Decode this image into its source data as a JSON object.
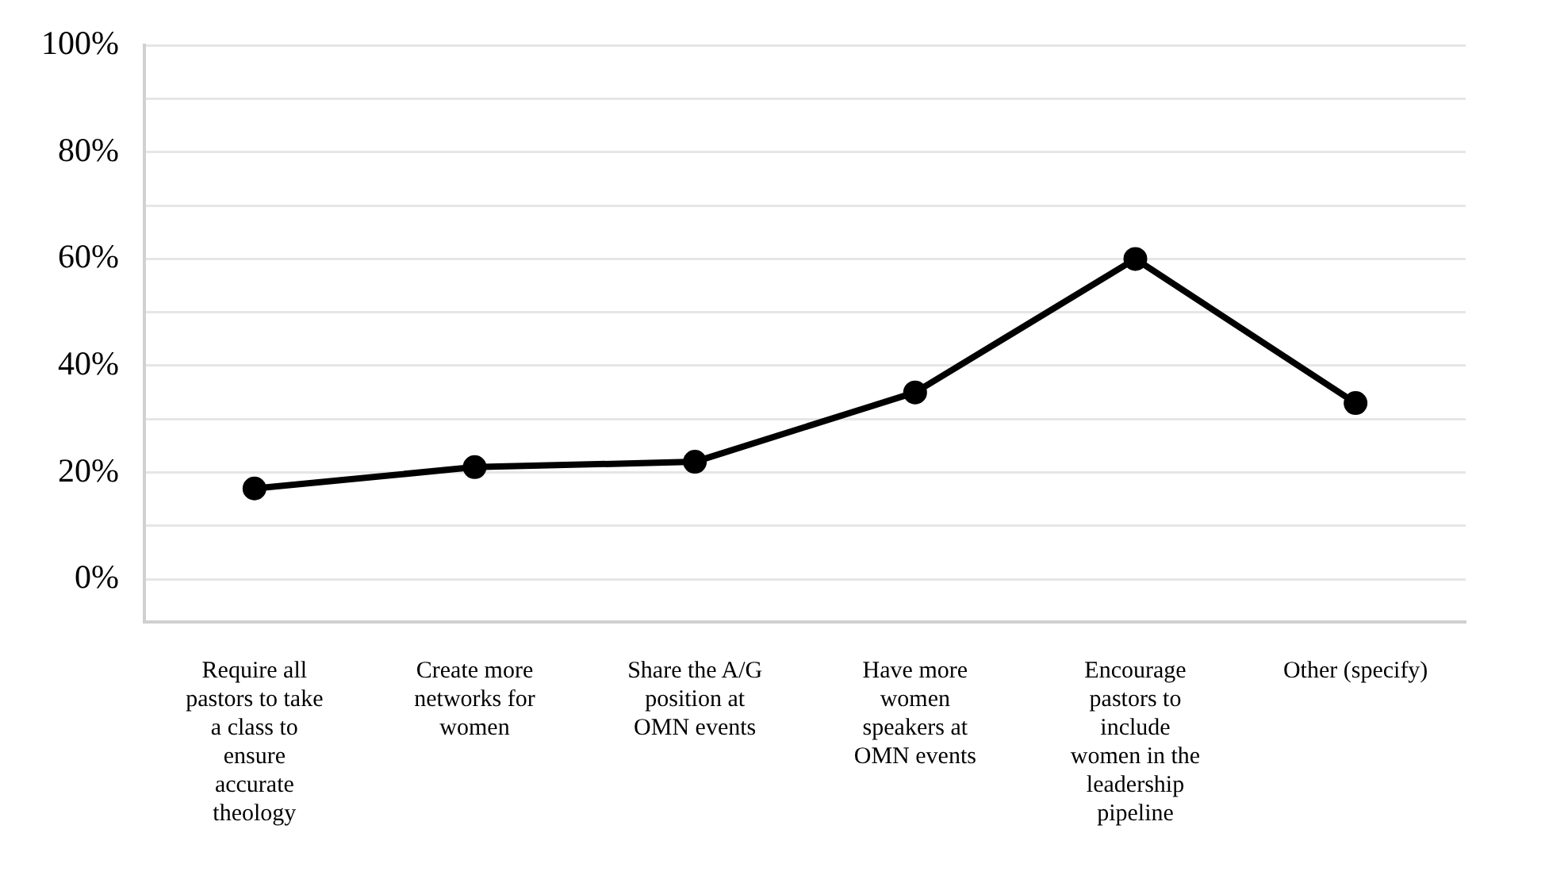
{
  "chart_data": {
    "type": "line",
    "categories": [
      "Require all pastors to take a class to ensure accurate theology",
      "Create more networks for women",
      "Share the A/G position at OMN events",
      "Have more women speakers at OMN events",
      "Encourage pastors to include women in the leadership pipeline",
      "Other (specify)"
    ],
    "series": [
      {
        "color": "#000000",
        "values": [
          17,
          21,
          22,
          35,
          60,
          33
        ]
      }
    ],
    "ylim": [
      -8,
      100
    ],
    "yticks": [
      {
        "value": 0,
        "label": "0%"
      },
      {
        "value": 10,
        "label": null
      },
      {
        "value": 20,
        "label": "20%"
      },
      {
        "value": 30,
        "label": null
      },
      {
        "value": 40,
        "label": "40%"
      },
      {
        "value": 50,
        "label": null
      },
      {
        "value": 60,
        "label": "60%"
      },
      {
        "value": 70,
        "label": null
      },
      {
        "value": 80,
        "label": "80%"
      },
      {
        "value": 90,
        "label": null
      },
      {
        "value": 100,
        "label": "100%"
      }
    ],
    "grid": "y",
    "legend": false,
    "marker": "circle",
    "line_style": "solid"
  }
}
